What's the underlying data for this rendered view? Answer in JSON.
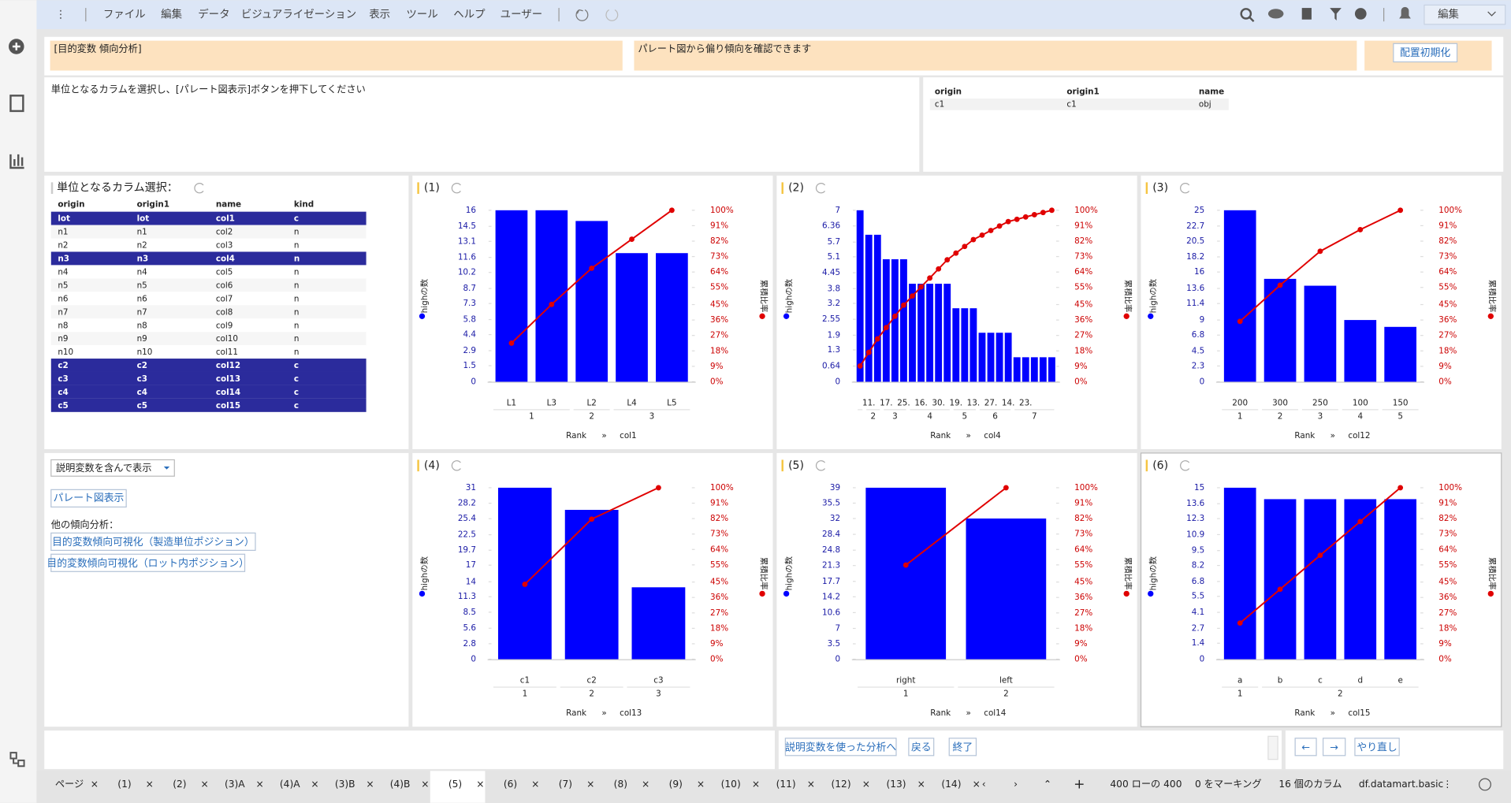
{
  "menu": [
    "ファイル",
    "編集",
    "データ",
    "ビジュアライゼーション",
    "表示",
    "ツール",
    "ヘルプ",
    "ユーザー"
  ],
  "mode": "編集",
  "header": {
    "title": "[目的変数 傾向分析]",
    "description": "パレート図から偏り傾向を確認できます",
    "reset_button": "配置初期化"
  },
  "instruction": "単位となるカラムを選択し、[パレート図表示]ボタンを押下してください",
  "target_table": {
    "columns": [
      "origin",
      "origin1",
      "name"
    ],
    "rows": [
      [
        "c1",
        "c1",
        "obj"
      ]
    ]
  },
  "column_select": {
    "title": "単位となるカラム選択：",
    "columns": [
      "origin",
      "origin1",
      "name",
      "kind"
    ],
    "rows": [
      [
        "lot",
        "lot",
        "col1",
        "c"
      ],
      [
        "n1",
        "n1",
        "col2",
        "n"
      ],
      [
        "n2",
        "n2",
        "col3",
        "n"
      ],
      [
        "n3",
        "n3",
        "col4",
        "n"
      ],
      [
        "n4",
        "n4",
        "col5",
        "n"
      ],
      [
        "n5",
        "n5",
        "col6",
        "n"
      ],
      [
        "n6",
        "n6",
        "col7",
        "n"
      ],
      [
        "n7",
        "n7",
        "col8",
        "n"
      ],
      [
        "n8",
        "n8",
        "col9",
        "n"
      ],
      [
        "n9",
        "n9",
        "col10",
        "n"
      ],
      [
        "n10",
        "n10",
        "col11",
        "n"
      ],
      [
        "c2",
        "c2",
        "col12",
        "c"
      ],
      [
        "c3",
        "c3",
        "col13",
        "c"
      ],
      [
        "c4",
        "c4",
        "col14",
        "c"
      ],
      [
        "c5",
        "c5",
        "col15",
        "c"
      ]
    ],
    "selected_rows": [
      0,
      3,
      11,
      12,
      13,
      14
    ]
  },
  "controls": {
    "display_option": "説明変数を含んで表示",
    "pareto_button": "パレート図表示",
    "other_label": "他の傾向分析：",
    "links": [
      "目的変数傾向可視化（製造単位ポジション）",
      "目的変数傾向可視化（ロット内ポジション）"
    ]
  },
  "footer_buttons": [
    "説明変数を使った分析へ",
    "戻る",
    "終了"
  ],
  "nav_buttons": [
    "←",
    "→",
    "やり直し"
  ],
  "tabs": [
    "ページ",
    "(1)",
    "(2)",
    "(3)A",
    "(4)A",
    "(3)B",
    "(4)B",
    "(5)",
    "(6)",
    "(7)",
    "(8)",
    "(9)",
    "(10)",
    "(11)",
    "(12)",
    "(13)",
    "(14)"
  ],
  "active_tab": 7,
  "status": [
    "400 ローの 400",
    "0 をマーキング",
    "16 個のカラム",
    "df.datamart.basic"
  ],
  "chart_data": [
    {
      "type": "pareto",
      "title": "(1)",
      "categories": [
        "L1",
        "L3",
        "L2",
        "L4",
        "L5"
      ],
      "groups": [
        {
          "label": "1",
          "size": 2
        },
        {
          "label": "2",
          "size": 1
        },
        {
          "label": "3",
          "size": 2
        }
      ],
      "series": [
        {
          "name": "highの数",
          "color": "#0000ff",
          "values": [
            16,
            16,
            15,
            12,
            12
          ]
        },
        {
          "name": "累積比率",
          "color": "#e00000",
          "axis": "y2",
          "values": [
            22.5,
            45.1,
            66.2,
            83.1,
            100
          ]
        }
      ],
      "ylim": [
        0,
        16
      ],
      "yticks": [
        0,
        1.5,
        2.9,
        4.4,
        5.8,
        7.3,
        8.7,
        10.2,
        11.6,
        13.1,
        14.5,
        16
      ],
      "y2lim": [
        0,
        100
      ],
      "y2ticks": [
        {
          "value": 0,
          "label": "0%"
        },
        {
          "value": 9,
          "label": "9%"
        },
        {
          "value": 18,
          "label": "18%"
        },
        {
          "value": 27,
          "label": "27%"
        },
        {
          "value": 36,
          "label": "36%"
        },
        {
          "value": 45,
          "label": "45%"
        },
        {
          "value": 55,
          "label": "55%"
        },
        {
          "value": 64,
          "label": "64%"
        },
        {
          "value": 73,
          "label": "73%"
        },
        {
          "value": 82,
          "label": "82%"
        },
        {
          "value": 91,
          "label": "91%"
        },
        {
          "value": 100,
          "label": "100%"
        }
      ],
      "x_label": "Rank",
      "x_separator": "»",
      "x_field": "col1"
    },
    {
      "type": "pareto",
      "title": "(2)",
      "categories": [
        null,
        "11.",
        null,
        "17.",
        null,
        "25.",
        null,
        "16.",
        null,
        "30.",
        null,
        "19.",
        null,
        "13.",
        null,
        "27.",
        null,
        "14.",
        null,
        "23.",
        null,
        null,
        null
      ],
      "groups": [
        {
          "label": null,
          "size": 1
        },
        {
          "label": "2",
          "size": 2
        },
        {
          "label": "3",
          "size": 3
        },
        {
          "label": "4",
          "size": 5
        },
        {
          "label": "5",
          "size": 3
        },
        {
          "label": "6",
          "size": 4
        },
        {
          "label": "7",
          "size": 5
        }
      ],
      "series": [
        {
          "name": "highの数",
          "color": "#0000ff",
          "values": [
            7,
            6,
            6,
            5,
            5,
            5,
            4,
            4,
            4,
            4,
            4,
            3,
            3,
            3,
            2,
            2,
            2,
            2,
            1,
            1,
            1,
            1,
            1
          ]
        },
        {
          "name": "累積比率",
          "color": "#e00000",
          "axis": "y2",
          "values": [
            9.2,
            17.1,
            25,
            31.6,
            38.2,
            44.7,
            50,
            55.3,
            60.5,
            65.8,
            71.1,
            75,
            78.9,
            82.9,
            85.5,
            88.2,
            90.8,
            93.4,
            94.7,
            96.1,
            97.4,
            98.7,
            100
          ]
        }
      ],
      "ylim": [
        0,
        7
      ],
      "yticks": [
        0,
        0.64,
        1.3,
        1.9,
        2.55,
        3.2,
        3.8,
        4.45,
        5.1,
        5.7,
        6.36,
        7
      ],
      "y2lim": [
        0,
        100
      ],
      "y2ticks": [
        {
          "value": 0,
          "label": "0%"
        },
        {
          "value": 9,
          "label": "9%"
        },
        {
          "value": 18,
          "label": "18%"
        },
        {
          "value": 27,
          "label": "27%"
        },
        {
          "value": 36,
          "label": "36%"
        },
        {
          "value": 45,
          "label": "45%"
        },
        {
          "value": 55,
          "label": "55%"
        },
        {
          "value": 64,
          "label": "64%"
        },
        {
          "value": 73,
          "label": "73%"
        },
        {
          "value": 82,
          "label": "82%"
        },
        {
          "value": 91,
          "label": "91%"
        },
        {
          "value": 100,
          "label": "100%"
        }
      ],
      "x_label": "Rank",
      "x_separator": "»",
      "x_field": "col4"
    },
    {
      "type": "pareto",
      "title": "(3)",
      "categories": [
        "200",
        "300",
        "250",
        "100",
        "150"
      ],
      "groups": [
        {
          "label": "1",
          "size": 1
        },
        {
          "label": "2",
          "size": 1
        },
        {
          "label": "3",
          "size": 1
        },
        {
          "label": "4",
          "size": 1
        },
        {
          "label": "5",
          "size": 1
        }
      ],
      "series": [
        {
          "name": "highの数",
          "color": "#0000ff",
          "values": [
            25,
            15,
            14,
            9,
            8
          ]
        },
        {
          "name": "累積比率",
          "color": "#e00000",
          "axis": "y2",
          "values": [
            35.2,
            56.3,
            76.1,
            88.7,
            100
          ]
        }
      ],
      "ylim": [
        0,
        25
      ],
      "yticks": [
        0,
        2.3,
        4.5,
        6.8,
        9,
        11.4,
        13.6,
        16,
        18.2,
        20.5,
        22.7,
        25
      ],
      "y2lim": [
        0,
        100
      ],
      "y2ticks": [
        {
          "value": 0,
          "label": "0%"
        },
        {
          "value": 9,
          "label": "9%"
        },
        {
          "value": 18,
          "label": "18%"
        },
        {
          "value": 27,
          "label": "27%"
        },
        {
          "value": 36,
          "label": "36%"
        },
        {
          "value": 45,
          "label": "45%"
        },
        {
          "value": 55,
          "label": "55%"
        },
        {
          "value": 64,
          "label": "64%"
        },
        {
          "value": 73,
          "label": "73%"
        },
        {
          "value": 82,
          "label": "82%"
        },
        {
          "value": 91,
          "label": "91%"
        },
        {
          "value": 100,
          "label": "100%"
        }
      ],
      "x_label": "Rank",
      "x_separator": "»",
      "x_field": "col12"
    },
    {
      "type": "pareto",
      "title": "(4)",
      "categories": [
        "c1",
        "c2",
        "c3"
      ],
      "groups": [
        {
          "label": "1",
          "size": 1
        },
        {
          "label": "2",
          "size": 1
        },
        {
          "label": "3",
          "size": 1
        }
      ],
      "series": [
        {
          "name": "highの数",
          "color": "#0000ff",
          "values": [
            31,
            27,
            13
          ]
        },
        {
          "name": "累積比率",
          "color": "#e00000",
          "axis": "y2",
          "values": [
            43.7,
            81.7,
            100
          ]
        }
      ],
      "ylim": [
        0,
        31
      ],
      "yticks": [
        0,
        2.8,
        5.6,
        8.5,
        11.3,
        14,
        17,
        19.7,
        22.5,
        25.4,
        28.2,
        31
      ],
      "y2lim": [
        0,
        100
      ],
      "y2ticks": [
        {
          "value": 0,
          "label": "0%"
        },
        {
          "value": 9,
          "label": "9%"
        },
        {
          "value": 18,
          "label": "18%"
        },
        {
          "value": 27,
          "label": "27%"
        },
        {
          "value": 36,
          "label": "36%"
        },
        {
          "value": 45,
          "label": "45%"
        },
        {
          "value": 55,
          "label": "55%"
        },
        {
          "value": 64,
          "label": "64%"
        },
        {
          "value": 73,
          "label": "73%"
        },
        {
          "value": 82,
          "label": "82%"
        },
        {
          "value": 91,
          "label": "91%"
        },
        {
          "value": 100,
          "label": "100%"
        }
      ],
      "x_label": "Rank",
      "x_separator": "»",
      "x_field": "col13"
    },
    {
      "type": "pareto",
      "title": "(5)",
      "categories": [
        "right",
        "left"
      ],
      "groups": [
        {
          "label": "1",
          "size": 1
        },
        {
          "label": "2",
          "size": 1
        }
      ],
      "series": [
        {
          "name": "highの数",
          "color": "#0000ff",
          "values": [
            39,
            32
          ]
        },
        {
          "name": "累積比率",
          "color": "#e00000",
          "axis": "y2",
          "values": [
            54.9,
            100
          ]
        }
      ],
      "ylim": [
        0,
        39
      ],
      "yticks": [
        0,
        3.5,
        7,
        10.6,
        14.2,
        17.7,
        21.3,
        24.8,
        28.4,
        32,
        35.5,
        39
      ],
      "y2lim": [
        0,
        100
      ],
      "y2ticks": [
        {
          "value": 0,
          "label": "0%"
        },
        {
          "value": 9,
          "label": "9%"
        },
        {
          "value": 18,
          "label": "18%"
        },
        {
          "value": 27,
          "label": "27%"
        },
        {
          "value": 36,
          "label": "36%"
        },
        {
          "value": 45,
          "label": "45%"
        },
        {
          "value": 55,
          "label": "55%"
        },
        {
          "value": 64,
          "label": "64%"
        },
        {
          "value": 73,
          "label": "73%"
        },
        {
          "value": 82,
          "label": "82%"
        },
        {
          "value": 91,
          "label": "91%"
        },
        {
          "value": 100,
          "label": "100%"
        }
      ],
      "x_label": "Rank",
      "x_separator": "»",
      "x_field": "col14"
    },
    {
      "type": "pareto",
      "title": "(6)",
      "categories": [
        "a",
        "b",
        "c",
        "d",
        "e"
      ],
      "groups": [
        {
          "label": "1",
          "size": 1
        },
        {
          "label": "2",
          "size": 4
        }
      ],
      "series": [
        {
          "name": "highの数",
          "color": "#0000ff",
          "values": [
            15,
            14,
            14,
            14,
            14
          ]
        },
        {
          "name": "累積比率",
          "color": "#e00000",
          "axis": "y2",
          "values": [
            21.1,
            40.8,
            60.6,
            80.3,
            100
          ]
        }
      ],
      "ylim": [
        0,
        15
      ],
      "yticks": [
        0,
        1.4,
        2.7,
        4.1,
        5.5,
        6.8,
        8.2,
        9.5,
        10.9,
        12.3,
        13.6,
        15
      ],
      "y2lim": [
        0,
        100
      ],
      "y2ticks": [
        {
          "value": 0,
          "label": "0%"
        },
        {
          "value": 9,
          "label": "9%"
        },
        {
          "value": 18,
          "label": "18%"
        },
        {
          "value": 27,
          "label": "27%"
        },
        {
          "value": 36,
          "label": "36%"
        },
        {
          "value": 45,
          "label": "45%"
        },
        {
          "value": 55,
          "label": "55%"
        },
        {
          "value": 64,
          "label": "64%"
        },
        {
          "value": 73,
          "label": "73%"
        },
        {
          "value": 82,
          "label": "82%"
        },
        {
          "value": 91,
          "label": "91%"
        },
        {
          "value": 100,
          "label": "100%"
        }
      ],
      "x_label": "Rank",
      "x_separator": "»",
      "x_field": "col15"
    }
  ]
}
